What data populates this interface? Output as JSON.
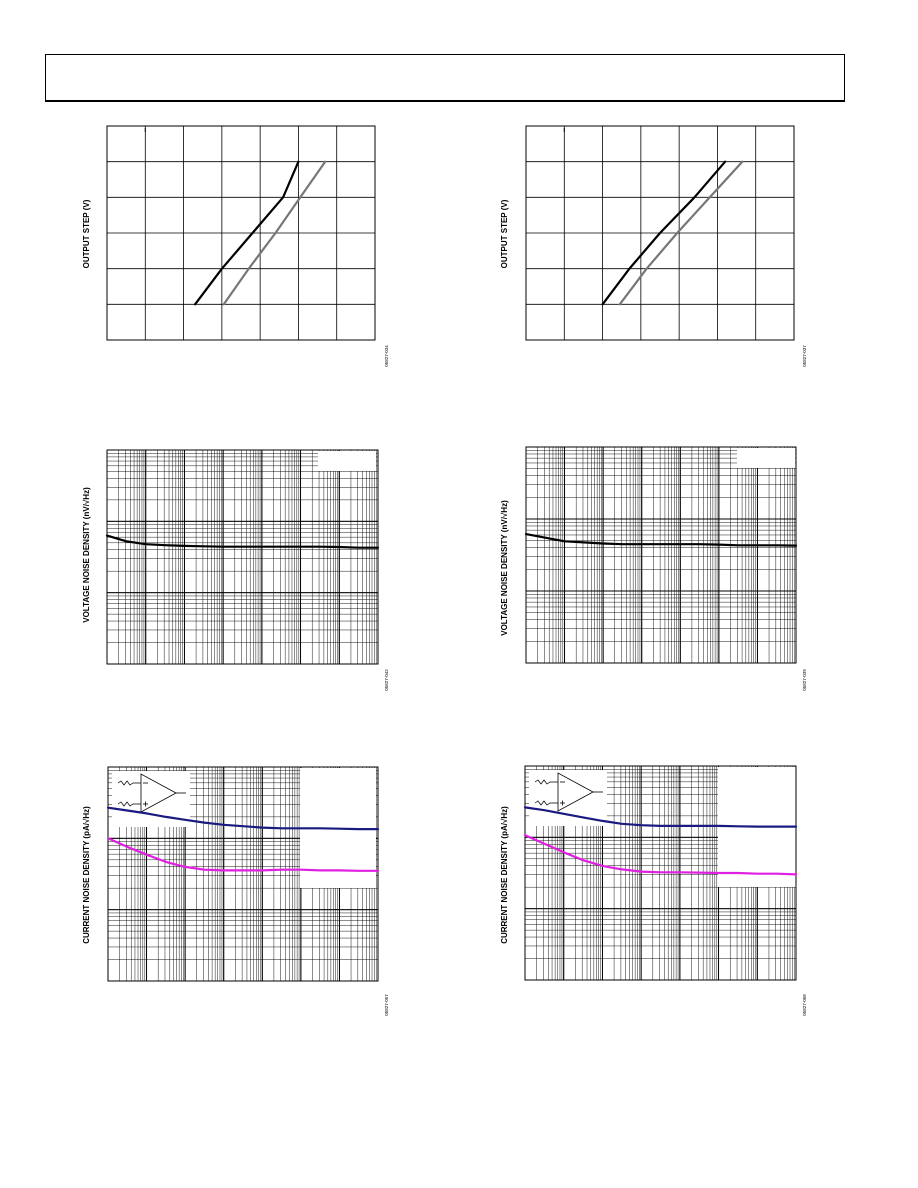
{
  "page": {
    "header_text": ""
  },
  "charts": [
    {
      "id": "step-left",
      "ylabel": "OUTPUT STEP (V)",
      "fig_id": "05827-034"
    },
    {
      "id": "step-right",
      "ylabel": "OUTPUT STEP (V)",
      "fig_id": "05827-037"
    },
    {
      "id": "vnoise-left",
      "ylabel": "VOLTAGE NOISE DENSITY (nV/√Hz)",
      "fig_id": "05827-042"
    },
    {
      "id": "vnoise-right",
      "ylabel": "VOLTAGE NOISE DENSITY (nV/√Hz)",
      "fig_id": "05827-039"
    },
    {
      "id": "inoise-left",
      "ylabel": "CURRENT NOISE DENSITY (pA/√Hz)",
      "fig_id": "05827-057"
    },
    {
      "id": "inoise-right",
      "ylabel": "CURRENT NOISE DENSITY (pA/√Hz)",
      "fig_id": "05827-058"
    }
  ],
  "chart_data": [
    {
      "type": "line",
      "title": "",
      "xlabel": "",
      "ylabel": "OUTPUT STEP (V)",
      "xlim": [
        0,
        7
      ],
      "ylim": [
        0,
        6
      ],
      "grid": true,
      "series": [
        {
          "color": "#000000",
          "x": [
            2.3,
            3.0,
            3.8,
            4.6,
            5.0
          ],
          "y": [
            1.0,
            2.0,
            3.0,
            4.0,
            5.0
          ]
        },
        {
          "color": "#777777",
          "x": [
            3.05,
            3.7,
            4.4,
            5.05,
            5.7
          ],
          "y": [
            1.0,
            2.0,
            3.0,
            4.0,
            5.0
          ]
        }
      ]
    },
    {
      "type": "line",
      "title": "",
      "xlabel": "",
      "ylabel": "OUTPUT STEP (V)",
      "xlim": [
        0,
        7
      ],
      "ylim": [
        0,
        6
      ],
      "grid": true,
      "series": [
        {
          "color": "#000000",
          "x": [
            2.0,
            2.7,
            3.5,
            4.4,
            5.2
          ],
          "y": [
            1.0,
            2.0,
            3.0,
            4.0,
            5.0
          ]
        },
        {
          "color": "#777777",
          "x": [
            2.45,
            3.15,
            3.95,
            4.8,
            5.65
          ],
          "y": [
            1.0,
            2.0,
            3.0,
            4.0,
            5.0
          ]
        }
      ]
    },
    {
      "type": "line",
      "title": "",
      "xlabel": "",
      "ylabel": "VOLTAGE NOISE DENSITY (nV/√Hz)",
      "x_scale": "log",
      "y_scale": "log",
      "x_decades": 7,
      "y_decades": 3,
      "grid": true,
      "series": [
        {
          "color": "#000000",
          "x": [
            0,
            0.5,
            1.0,
            1.5,
            2.0,
            2.5,
            3.0,
            3.5,
            4.0,
            4.5,
            5.0,
            5.5,
            6.0,
            6.5,
            7.0
          ],
          "y": [
            1.8,
            1.72,
            1.68,
            1.665,
            1.655,
            1.65,
            1.645,
            1.645,
            1.645,
            1.645,
            1.645,
            1.645,
            1.64,
            1.63,
            1.63
          ]
        }
      ]
    },
    {
      "type": "line",
      "title": "",
      "xlabel": "",
      "ylabel": "VOLTAGE NOISE DENSITY (nV/√Hz)",
      "x_scale": "log",
      "y_scale": "log",
      "x_decades": 7,
      "y_decades": 3,
      "grid": true,
      "series": [
        {
          "color": "#000000",
          "x": [
            0,
            0.5,
            1.0,
            1.5,
            2.0,
            2.5,
            3.0,
            3.5,
            4.0,
            4.5,
            5.0,
            5.5,
            6.0,
            6.5,
            7.0
          ],
          "y": [
            1.79,
            1.74,
            1.69,
            1.675,
            1.66,
            1.65,
            1.65,
            1.65,
            1.65,
            1.65,
            1.645,
            1.635,
            1.635,
            1.635,
            1.63
          ]
        }
      ]
    },
    {
      "type": "line",
      "title": "",
      "xlabel": "",
      "ylabel": "CURRENT NOISE DENSITY (pA/√Hz)",
      "x_scale": "log",
      "y_scale": "log",
      "x_decades": 7,
      "y_decades": 3,
      "grid": true,
      "series": [
        {
          "color": "#1a1a80",
          "x": [
            0,
            0.5,
            1.0,
            1.5,
            2.0,
            2.5,
            3.0,
            3.5,
            4.0,
            4.5,
            5.0,
            5.5,
            6.0,
            6.5,
            7.0
          ],
          "y": [
            2.43,
            2.39,
            2.35,
            2.3,
            2.26,
            2.22,
            2.19,
            2.17,
            2.15,
            2.14,
            2.14,
            2.14,
            2.135,
            2.13,
            2.13
          ]
        },
        {
          "color": "#e020e0",
          "x": [
            0,
            0.5,
            1.0,
            1.5,
            2.0,
            2.5,
            3.0,
            3.5,
            4.0,
            4.5,
            5.0,
            5.5,
            6.0,
            6.5,
            7.0
          ],
          "y": [
            2.0,
            1.88,
            1.77,
            1.67,
            1.6,
            1.56,
            1.55,
            1.55,
            1.55,
            1.56,
            1.56,
            1.55,
            1.55,
            1.545,
            1.545
          ]
        }
      ]
    },
    {
      "type": "line",
      "title": "",
      "xlabel": "",
      "ylabel": "CURRENT NOISE DENSITY (pA/√Hz)",
      "x_scale": "log",
      "y_scale": "log",
      "x_decades": 7,
      "y_decades": 3,
      "grid": true,
      "series": [
        {
          "color": "#1a1a80",
          "x": [
            0,
            0.5,
            1.0,
            1.5,
            2.0,
            2.5,
            3.0,
            3.5,
            4.0,
            4.5,
            5.0,
            5.5,
            6.0,
            6.5,
            7.0
          ],
          "y": [
            2.42,
            2.38,
            2.33,
            2.28,
            2.23,
            2.19,
            2.17,
            2.16,
            2.16,
            2.16,
            2.16,
            2.155,
            2.15,
            2.15,
            2.15
          ]
        },
        {
          "color": "#e020e0",
          "x": [
            0,
            0.5,
            1.0,
            1.5,
            2.0,
            2.5,
            3.0,
            3.5,
            4.0,
            4.5,
            5.0,
            5.5,
            6.0,
            6.5,
            7.0
          ],
          "y": [
            2.03,
            1.91,
            1.79,
            1.68,
            1.6,
            1.55,
            1.52,
            1.51,
            1.51,
            1.505,
            1.5,
            1.5,
            1.49,
            1.49,
            1.48
          ]
        }
      ]
    }
  ]
}
